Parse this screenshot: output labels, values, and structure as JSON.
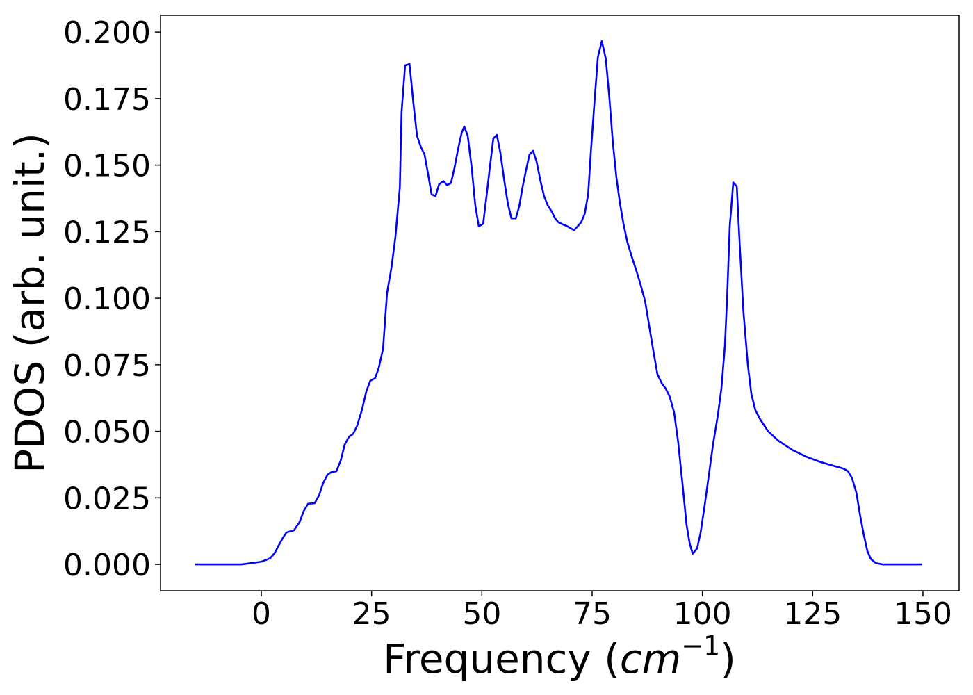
{
  "chart_data": {
    "type": "line",
    "xlabel": [
      "Frequency (",
      "cm",
      "−1",
      ")"
    ],
    "ylabel": "PDOS (arb. unit.)",
    "xlim": [
      -22.85,
      158.2
    ],
    "ylim": [
      -0.0099,
      0.2063
    ],
    "xticks": [
      0,
      25,
      50,
      75,
      100,
      125,
      150
    ],
    "yticks": [
      {
        "value": 0,
        "label": "0.000"
      },
      {
        "value": 0.025,
        "label": "0.025"
      },
      {
        "value": 0.05,
        "label": "0.050"
      },
      {
        "value": 0.075,
        "label": "0.075"
      },
      {
        "value": 0.1,
        "label": "0.100"
      },
      {
        "value": 0.125,
        "label": "0.125"
      },
      {
        "value": 0.15,
        "label": "0.150"
      },
      {
        "value": 0.175,
        "label": "0.175"
      },
      {
        "value": 0.2,
        "label": "0.200"
      }
    ],
    "grid": false,
    "x": [
      -15,
      -4.5,
      0,
      2.0,
      3.0,
      3.9,
      4.9,
      5.7,
      7.4,
      8.7,
      9.6,
      10.6,
      12.1,
      13.1,
      14.0,
      15.0,
      15.9,
      17.0,
      18.0,
      18.9,
      19.9,
      20.8,
      21.7,
      22.8,
      23.8,
      24.7,
      25.8,
      26.6,
      27.6,
      28.5,
      29.5,
      30.4,
      31.4,
      31.8,
      32.6,
      33.6,
      34.5,
      35.3,
      36.2,
      37.0,
      37.8,
      38.6,
      39.5,
      40.3,
      41.3,
      42.1,
      43.0,
      43.8,
      44.6,
      45.4,
      46.0,
      46.8,
      47.7,
      48.5,
      49.3,
      50.3,
      51.0,
      51.8,
      52.6,
      53.4,
      54.2,
      55.1,
      55.9,
      56.7,
      57.7,
      58.5,
      59.2,
      60.0,
      60.8,
      61.6,
      62.4,
      63.3,
      64.1,
      64.9,
      65.9,
      66.6,
      67.4,
      68.4,
      69.2,
      70.0,
      70.9,
      71.5,
      72.5,
      73.3,
      74.1,
      74.7,
      75.5,
      76.3,
      77.2,
      78.1,
      78.9,
      79.7,
      80.5,
      81.3,
      82.1,
      83.0,
      84.1,
      85.1,
      86.0,
      87.0,
      87.9,
      88.9,
      89.8,
      90.8,
      91.7,
      92.6,
      93.6,
      94.5,
      95.5,
      96.4,
      97.1,
      97.8,
      98.8,
      99.6,
      100.5,
      101.5,
      102.4,
      103.5,
      104.3,
      105.1,
      105.6,
      106.2,
      107.0,
      107.8,
      108.4,
      109.3,
      110.3,
      111.1,
      112.0,
      113.1,
      114.9,
      117.2,
      120.4,
      123.5,
      126.7,
      129.8,
      132.0,
      133.0,
      133.9,
      134.9,
      135.8,
      136.6,
      137.4,
      138.2,
      139.3,
      140.9,
      149.8
    ],
    "series": [
      {
        "color": "#0000ff",
        "values": [
          0,
          0,
          0.001,
          0.0023,
          0.0042,
          0.007,
          0.01,
          0.012,
          0.0128,
          0.016,
          0.02,
          0.0228,
          0.023,
          0.026,
          0.0305,
          0.0337,
          0.0347,
          0.035,
          0.039,
          0.045,
          0.048,
          0.049,
          0.052,
          0.058,
          0.065,
          0.069,
          0.07,
          0.0737,
          0.081,
          0.102,
          0.1115,
          0.123,
          0.1415,
          0.17,
          0.1875,
          0.188,
          0.173,
          0.161,
          0.1567,
          0.154,
          0.1467,
          0.139,
          0.1384,
          0.1428,
          0.144,
          0.1425,
          0.1433,
          0.149,
          0.156,
          0.162,
          0.1645,
          0.161,
          0.149,
          0.135,
          0.127,
          0.128,
          0.1376,
          0.149,
          0.16,
          0.1614,
          0.1546,
          0.144,
          0.1355,
          0.13,
          0.13,
          0.1347,
          0.1415,
          0.148,
          0.154,
          0.1554,
          0.1514,
          0.144,
          0.1384,
          0.135,
          0.1324,
          0.13,
          0.1285,
          0.1277,
          0.1272,
          0.1264,
          0.1256,
          0.1266,
          0.1285,
          0.1316,
          0.139,
          0.1546,
          0.173,
          0.1906,
          0.1966,
          0.19,
          0.1755,
          0.1585,
          0.1454,
          0.1358,
          0.128,
          0.121,
          0.115,
          0.11,
          0.105,
          0.099,
          0.09,
          0.08,
          0.0715,
          0.068,
          0.066,
          0.063,
          0.057,
          0.046,
          0.03,
          0.015,
          0.008,
          0.004,
          0.006,
          0.012,
          0.022,
          0.034,
          0.045,
          0.056,
          0.066,
          0.082,
          0.1,
          0.127,
          0.1435,
          0.142,
          0.122,
          0.095,
          0.075,
          0.064,
          0.058,
          0.0545,
          0.05,
          0.0465,
          0.043,
          0.0405,
          0.0385,
          0.037,
          0.036,
          0.035,
          0.0325,
          0.027,
          0.018,
          0.011,
          0.005,
          0.002,
          0.0005,
          0,
          0
        ]
      }
    ]
  }
}
